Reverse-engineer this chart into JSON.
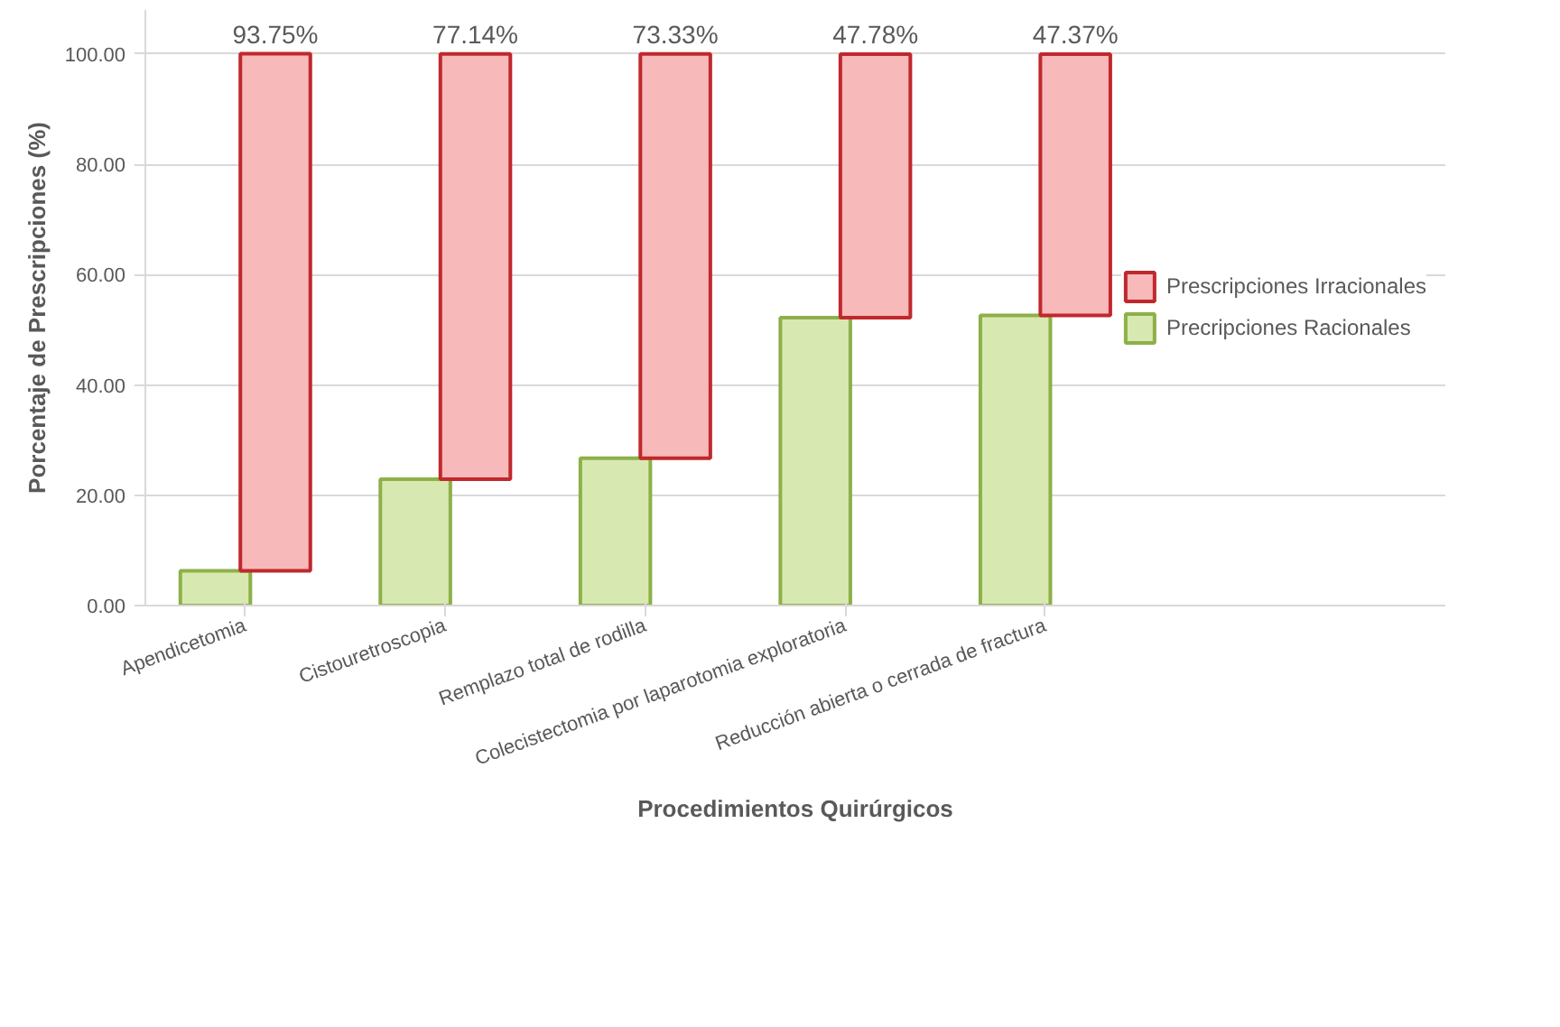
{
  "chart_data": {
    "type": "bar",
    "stacked": true,
    "xlabel": "Procedimientos Quirúrgicos",
    "ylabel": "Porcentaje de Prescripciones (%)",
    "categories": [
      "Apendicetomia",
      "Cistouretroscopia",
      "Remplazo total de rodilla",
      "Colecistectomia por laparotomia exploratoria",
      "Reducción abierta o cerrada de fractura"
    ],
    "series": [
      {
        "name": "Precripciones Racionales",
        "color": "#d7e9b0",
        "values": [
          6.3,
          22.9,
          26.7,
          52.2,
          52.6
        ]
      },
      {
        "name": "Prescripciones Irracionales",
        "color": "#f7b9b9",
        "values": [
          93.75,
          77.14,
          73.33,
          47.78,
          47.37
        ],
        "value_labels": [
          "93.75%",
          "77.14%",
          "73.33%",
          "47.78%",
          "47.37%"
        ]
      }
    ],
    "ylim": [
      0,
      108
    ],
    "yticks": [
      {
        "value": 0,
        "label": "0.00"
      },
      {
        "value": 20,
        "label": "20.00"
      },
      {
        "value": 40,
        "label": "40.00"
      },
      {
        "value": 60,
        "label": "60.00"
      },
      {
        "value": 80,
        "label": "80.00"
      },
      {
        "value": 100,
        "label": "100.00"
      }
    ],
    "grid": "y",
    "legend": "right"
  }
}
